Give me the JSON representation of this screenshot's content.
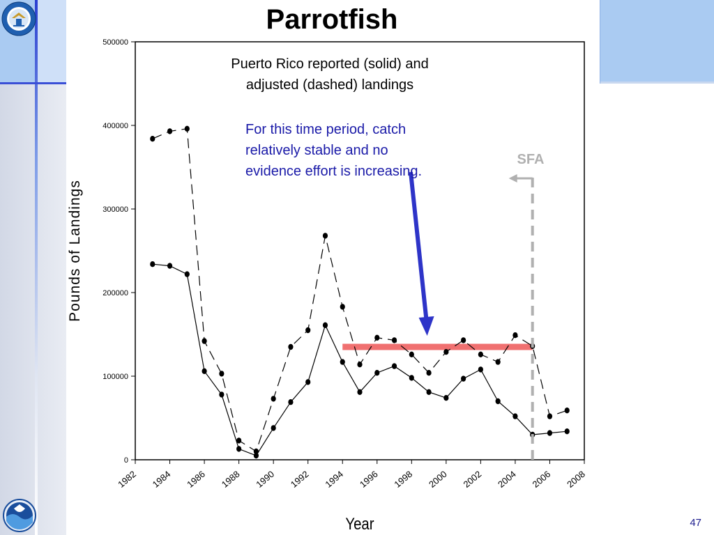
{
  "slide": {
    "title": "Parrotfish",
    "page_number": "47"
  },
  "chart_data": {
    "type": "line",
    "title": "",
    "xlabel": "Year",
    "ylabel": "Pounds of Landings",
    "xlim": [
      1982,
      2008
    ],
    "ylim": [
      0,
      500000
    ],
    "x_ticks": [
      1982,
      1984,
      1986,
      1988,
      1990,
      1992,
      1994,
      1996,
      1998,
      2000,
      2002,
      2004,
      2006,
      2008
    ],
    "x_tick_labels": [
      "1982",
      "1984",
      "1986",
      "1988",
      "1990",
      "1992",
      "1994",
      "1996",
      "1998",
      "2000",
      "2002",
      "2004",
      "2006",
      "2008"
    ],
    "y_ticks": [
      0,
      100000,
      200000,
      300000,
      400000,
      500000
    ],
    "y_tick_labels": [
      "0",
      "100000",
      "200000",
      "300000",
      "400000",
      "500000"
    ],
    "grid": false,
    "legend": "none",
    "series": [
      {
        "style": "solid",
        "x": [
          1983,
          1984,
          1985,
          1986,
          1987,
          1988,
          1989,
          1990,
          1991,
          1992,
          1993,
          1994,
          1995,
          1996,
          1997,
          1998,
          1999,
          2000,
          2001,
          2002,
          2003,
          2004,
          2005,
          2006,
          2007
        ],
        "values": [
          234000,
          232000,
          222000,
          106000,
          78000,
          13000,
          5000,
          38000,
          69000,
          93000,
          161000,
          117000,
          81000,
          104000,
          112000,
          98000,
          81000,
          74000,
          97000,
          108000,
          70000,
          52000,
          30000,
          32000,
          34000
        ]
      },
      {
        "style": "dashed",
        "x": [
          1983,
          1984,
          1985,
          1986,
          1987,
          1988,
          1989,
          1990,
          1991,
          1992,
          1993,
          1994,
          1995,
          1996,
          1997,
          1998,
          1999,
          2000,
          2001,
          2002,
          2003,
          2004,
          2005,
          2006,
          2007
        ],
        "values": [
          384000,
          393000,
          396000,
          142000,
          103000,
          23000,
          10000,
          73000,
          135000,
          155000,
          268000,
          183000,
          114000,
          146000,
          143000,
          126000,
          104000,
          129000,
          143000,
          126000,
          117000,
          149000,
          136000,
          52000,
          59000
        ]
      }
    ],
    "annotations": {
      "legend_text_line1": "Puerto Rico reported (solid) and",
      "legend_text_line2": "adjusted (dashed) landings",
      "note_line1": "For this time period, catch",
      "note_line2": "relatively stable and no",
      "note_line3": "evidence effort is increasing.",
      "sfa_label": "SFA",
      "sfa_year": 2005,
      "stable_band": {
        "x_start": 1994,
        "x_end": 2005,
        "value": 135000
      },
      "arrow_target": {
        "year": 1998.9,
        "value": 155000
      }
    },
    "colors": {
      "series_line": "#000000",
      "note_text": "#1a1aa8",
      "arrow": "#2e34c8",
      "stable_band": "#f07070",
      "sfa": "#b0b0b0"
    }
  }
}
